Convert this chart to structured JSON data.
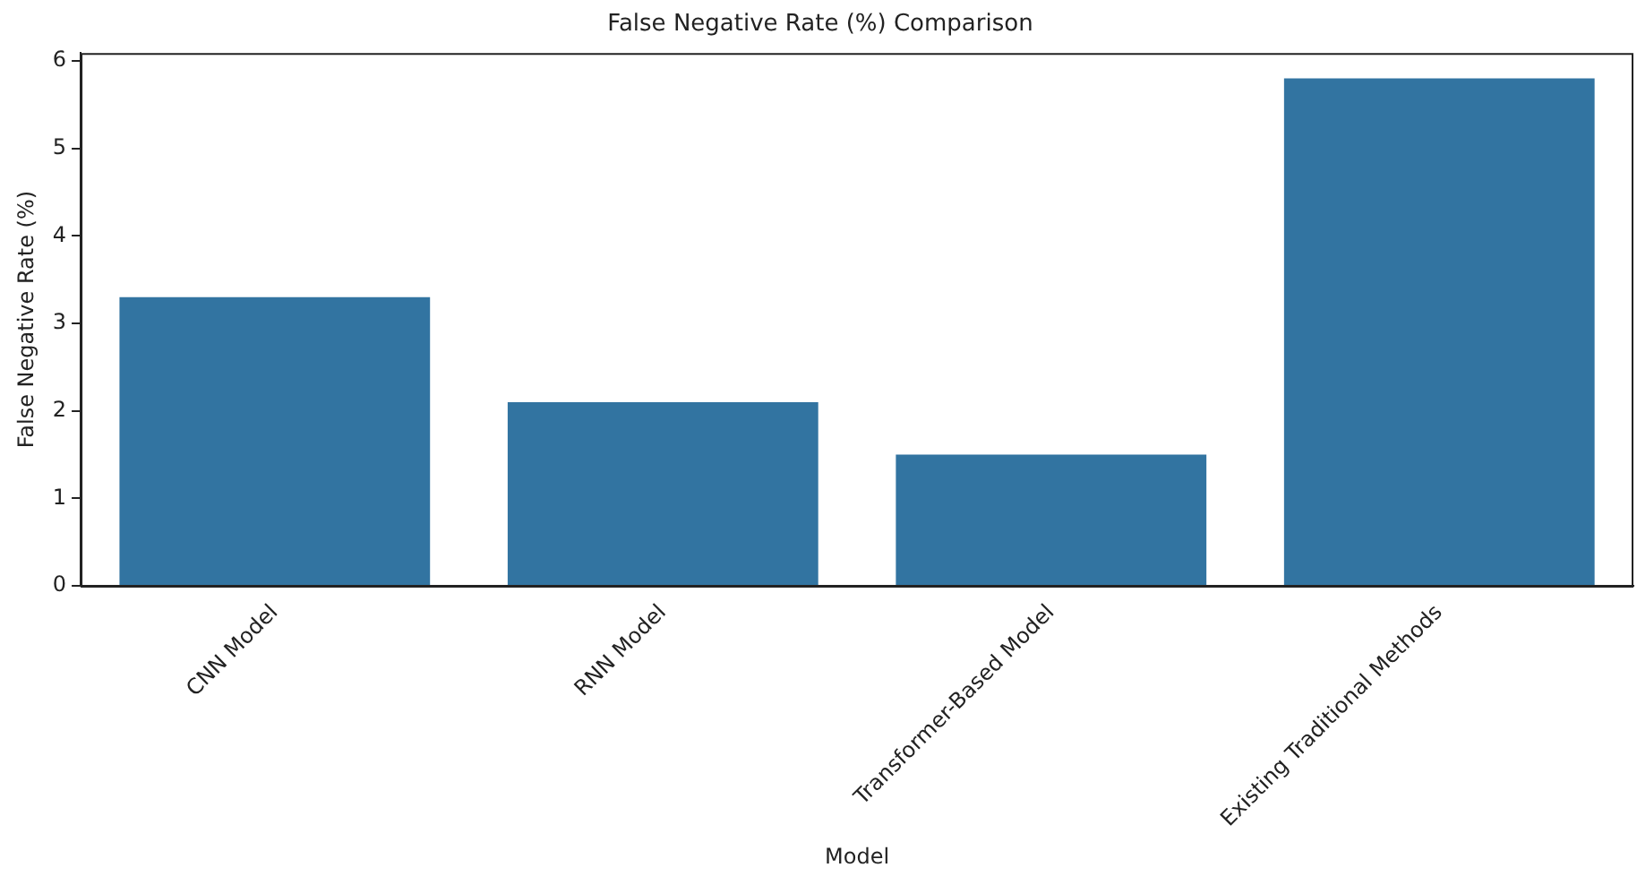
{
  "chart_data": {
    "type": "bar",
    "title": "False Negative Rate (%) Comparison",
    "xlabel": "Model",
    "ylabel": "False Negative Rate (%)",
    "categories": [
      "CNN Model",
      "RNN Model",
      "Transformer-Based Model",
      "Existing Traditional Methods"
    ],
    "values": [
      3.3,
      2.1,
      1.5,
      5.8
    ],
    "color": "#3274a1",
    "ylim": [
      0,
      6.09
    ],
    "yticks": [
      0,
      1,
      2,
      3,
      4,
      5,
      6
    ],
    "grid": false,
    "legend": false
  }
}
